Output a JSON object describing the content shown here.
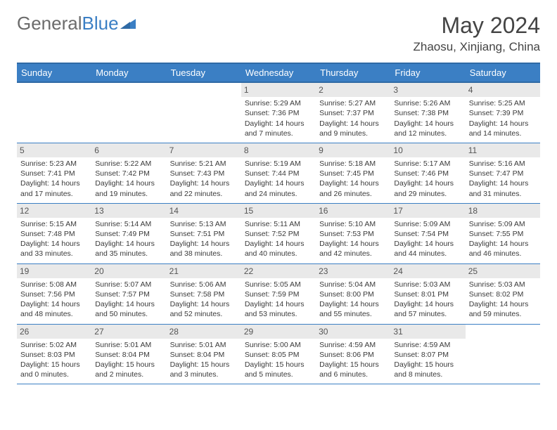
{
  "brand": {
    "part1": "General",
    "part2": "Blue"
  },
  "title": "May 2024",
  "location": "Zhaosu, Xinjiang, China",
  "colors": {
    "header_bg": "#3b7fc4",
    "header_border": "#2f6aa5",
    "daynum_bg": "#e9e9e9",
    "text": "#3a3a3a",
    "brand_gray": "#6b6b6b",
    "brand_blue": "#3b7fc4",
    "page_bg": "#ffffff"
  },
  "typography": {
    "title_fontsize": 32,
    "location_fontsize": 17,
    "dayhdr_fontsize": 13,
    "daynum_fontsize": 12,
    "cell_fontsize": 10.5
  },
  "day_headers": [
    "Sunday",
    "Monday",
    "Tuesday",
    "Wednesday",
    "Thursday",
    "Friday",
    "Saturday"
  ],
  "weeks": [
    [
      {
        "empty": true
      },
      {
        "empty": true
      },
      {
        "empty": true
      },
      {
        "num": "1",
        "sunrise": "5:29 AM",
        "sunset": "7:36 PM",
        "daylight": "14 hours and 7 minutes."
      },
      {
        "num": "2",
        "sunrise": "5:27 AM",
        "sunset": "7:37 PM",
        "daylight": "14 hours and 9 minutes."
      },
      {
        "num": "3",
        "sunrise": "5:26 AM",
        "sunset": "7:38 PM",
        "daylight": "14 hours and 12 minutes."
      },
      {
        "num": "4",
        "sunrise": "5:25 AM",
        "sunset": "7:39 PM",
        "daylight": "14 hours and 14 minutes."
      }
    ],
    [
      {
        "num": "5",
        "sunrise": "5:23 AM",
        "sunset": "7:41 PM",
        "daylight": "14 hours and 17 minutes."
      },
      {
        "num": "6",
        "sunrise": "5:22 AM",
        "sunset": "7:42 PM",
        "daylight": "14 hours and 19 minutes."
      },
      {
        "num": "7",
        "sunrise": "5:21 AM",
        "sunset": "7:43 PM",
        "daylight": "14 hours and 22 minutes."
      },
      {
        "num": "8",
        "sunrise": "5:19 AM",
        "sunset": "7:44 PM",
        "daylight": "14 hours and 24 minutes."
      },
      {
        "num": "9",
        "sunrise": "5:18 AM",
        "sunset": "7:45 PM",
        "daylight": "14 hours and 26 minutes."
      },
      {
        "num": "10",
        "sunrise": "5:17 AM",
        "sunset": "7:46 PM",
        "daylight": "14 hours and 29 minutes."
      },
      {
        "num": "11",
        "sunrise": "5:16 AM",
        "sunset": "7:47 PM",
        "daylight": "14 hours and 31 minutes."
      }
    ],
    [
      {
        "num": "12",
        "sunrise": "5:15 AM",
        "sunset": "7:48 PM",
        "daylight": "14 hours and 33 minutes."
      },
      {
        "num": "13",
        "sunrise": "5:14 AM",
        "sunset": "7:49 PM",
        "daylight": "14 hours and 35 minutes."
      },
      {
        "num": "14",
        "sunrise": "5:13 AM",
        "sunset": "7:51 PM",
        "daylight": "14 hours and 38 minutes."
      },
      {
        "num": "15",
        "sunrise": "5:11 AM",
        "sunset": "7:52 PM",
        "daylight": "14 hours and 40 minutes."
      },
      {
        "num": "16",
        "sunrise": "5:10 AM",
        "sunset": "7:53 PM",
        "daylight": "14 hours and 42 minutes."
      },
      {
        "num": "17",
        "sunrise": "5:09 AM",
        "sunset": "7:54 PM",
        "daylight": "14 hours and 44 minutes."
      },
      {
        "num": "18",
        "sunrise": "5:09 AM",
        "sunset": "7:55 PM",
        "daylight": "14 hours and 46 minutes."
      }
    ],
    [
      {
        "num": "19",
        "sunrise": "5:08 AM",
        "sunset": "7:56 PM",
        "daylight": "14 hours and 48 minutes."
      },
      {
        "num": "20",
        "sunrise": "5:07 AM",
        "sunset": "7:57 PM",
        "daylight": "14 hours and 50 minutes."
      },
      {
        "num": "21",
        "sunrise": "5:06 AM",
        "sunset": "7:58 PM",
        "daylight": "14 hours and 52 minutes."
      },
      {
        "num": "22",
        "sunrise": "5:05 AM",
        "sunset": "7:59 PM",
        "daylight": "14 hours and 53 minutes."
      },
      {
        "num": "23",
        "sunrise": "5:04 AM",
        "sunset": "8:00 PM",
        "daylight": "14 hours and 55 minutes."
      },
      {
        "num": "24",
        "sunrise": "5:03 AM",
        "sunset": "8:01 PM",
        "daylight": "14 hours and 57 minutes."
      },
      {
        "num": "25",
        "sunrise": "5:03 AM",
        "sunset": "8:02 PM",
        "daylight": "14 hours and 59 minutes."
      }
    ],
    [
      {
        "num": "26",
        "sunrise": "5:02 AM",
        "sunset": "8:03 PM",
        "daylight": "15 hours and 0 minutes."
      },
      {
        "num": "27",
        "sunrise": "5:01 AM",
        "sunset": "8:04 PM",
        "daylight": "15 hours and 2 minutes."
      },
      {
        "num": "28",
        "sunrise": "5:01 AM",
        "sunset": "8:04 PM",
        "daylight": "15 hours and 3 minutes."
      },
      {
        "num": "29",
        "sunrise": "5:00 AM",
        "sunset": "8:05 PM",
        "daylight": "15 hours and 5 minutes."
      },
      {
        "num": "30",
        "sunrise": "4:59 AM",
        "sunset": "8:06 PM",
        "daylight": "15 hours and 6 minutes."
      },
      {
        "num": "31",
        "sunrise": "4:59 AM",
        "sunset": "8:07 PM",
        "daylight": "15 hours and 8 minutes."
      },
      {
        "empty": true
      }
    ]
  ],
  "labels": {
    "sunrise": "Sunrise:",
    "sunset": "Sunset:",
    "daylight": "Daylight:"
  }
}
